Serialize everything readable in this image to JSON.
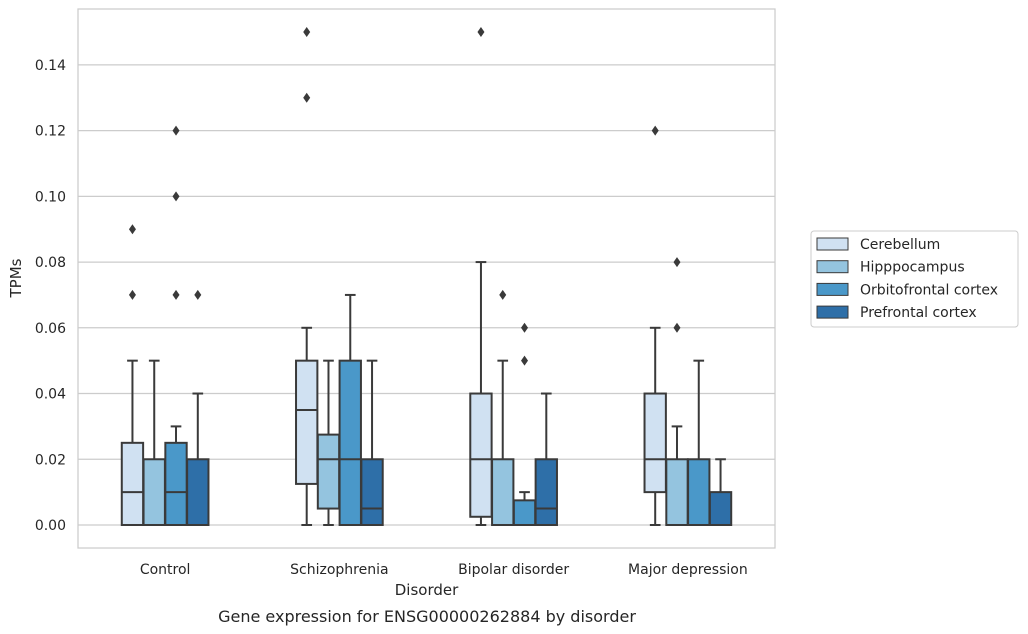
{
  "chart_data": {
    "type": "box",
    "xlabel": "Disorder",
    "ylabel": "TPMs",
    "caption": "Gene expression for ENSG00000262884 by disorder",
    "ylim": [
      -0.007,
      0.157
    ],
    "yticks": [
      "0.00",
      "0.02",
      "0.04",
      "0.06",
      "0.08",
      "0.10",
      "0.12",
      "0.14"
    ],
    "grid": "horizontal",
    "legend_position": "right-outside",
    "categories": [
      "Control",
      "Schizophrenia",
      "Bipolar disorder",
      "Major depression"
    ],
    "series": [
      {
        "name": "Cerebellum",
        "color": "#d0e1f2",
        "boxes": [
          {
            "whislo": 0.0,
            "q1": 0.0,
            "med": 0.01,
            "q3": 0.025,
            "whishi": 0.05,
            "fliers": [
              0.07,
              0.09
            ]
          },
          {
            "whislo": 0.0,
            "q1": 0.0125,
            "med": 0.035,
            "q3": 0.05,
            "whishi": 0.06,
            "fliers": [
              0.13,
              0.15
            ]
          },
          {
            "whislo": 0.0,
            "q1": 0.0025,
            "med": 0.02,
            "q3": 0.04,
            "whishi": 0.08,
            "fliers": [
              0.15
            ]
          },
          {
            "whislo": 0.0,
            "q1": 0.01,
            "med": 0.02,
            "q3": 0.04,
            "whishi": 0.06,
            "fliers": [
              0.12
            ]
          }
        ]
      },
      {
        "name": "Hipppocampus",
        "color": "#94c4df",
        "boxes": [
          {
            "whislo": 0.0,
            "q1": 0.0,
            "med": 0.0,
            "q3": 0.02,
            "whishi": 0.05,
            "fliers": []
          },
          {
            "whislo": 0.0,
            "q1": 0.005,
            "med": 0.02,
            "q3": 0.0275,
            "whishi": 0.05,
            "fliers": []
          },
          {
            "whislo": 0.0,
            "q1": 0.0,
            "med": 0.0,
            "q3": 0.02,
            "whishi": 0.05,
            "fliers": [
              0.07
            ]
          },
          {
            "whislo": 0.0,
            "q1": 0.0,
            "med": 0.0,
            "q3": 0.02,
            "whishi": 0.03,
            "fliers": [
              0.06,
              0.08
            ]
          }
        ]
      },
      {
        "name": "Orbitofrontal cortex",
        "color": "#4a98c9",
        "boxes": [
          {
            "whislo": 0.0,
            "q1": 0.0,
            "med": 0.01,
            "q3": 0.025,
            "whishi": 0.03,
            "fliers": [
              0.07,
              0.1,
              0.12
            ]
          },
          {
            "whislo": 0.0,
            "q1": 0.0,
            "med": 0.02,
            "q3": 0.05,
            "whishi": 0.07,
            "fliers": []
          },
          {
            "whislo": 0.0,
            "q1": 0.0,
            "med": 0.0,
            "q3": 0.0075,
            "whishi": 0.01,
            "fliers": [
              0.05,
              0.06
            ]
          },
          {
            "whislo": 0.0,
            "q1": 0.0,
            "med": 0.0,
            "q3": 0.02,
            "whishi": 0.05,
            "fliers": []
          }
        ]
      },
      {
        "name": "Prefrontal cortex",
        "color": "#2e6fa8",
        "boxes": [
          {
            "whislo": 0.0,
            "q1": 0.0,
            "med": 0.0,
            "q3": 0.02,
            "whishi": 0.04,
            "fliers": [
              0.07
            ]
          },
          {
            "whislo": 0.0,
            "q1": 0.0,
            "med": 0.005,
            "q3": 0.02,
            "whishi": 0.05,
            "fliers": []
          },
          {
            "whislo": 0.0,
            "q1": 0.0,
            "med": 0.005,
            "q3": 0.02,
            "whishi": 0.04,
            "fliers": []
          },
          {
            "whislo": 0.0,
            "q1": 0.0,
            "med": 0.0,
            "q3": 0.01,
            "whishi": 0.02,
            "fliers": []
          }
        ]
      }
    ]
  }
}
